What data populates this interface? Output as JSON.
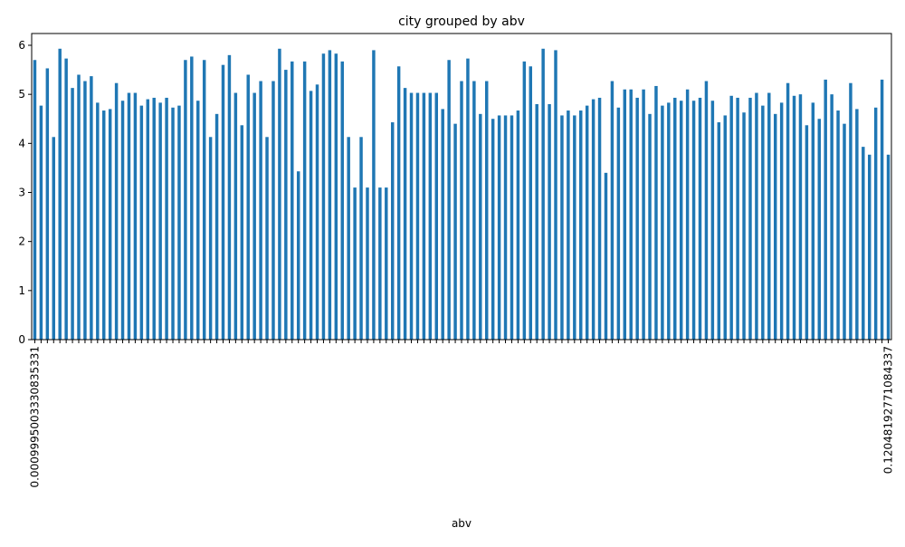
{
  "chart_data": {
    "type": "bar",
    "title": "city grouped by abv",
    "x_label": "abv",
    "categories": [
      "0.0009995003330835331",
      null,
      null,
      null,
      null,
      null,
      null,
      null,
      null,
      null,
      null,
      null,
      null,
      null,
      null,
      null,
      null,
      null,
      null,
      null,
      null,
      null,
      null,
      null,
      null,
      null,
      null,
      null,
      null,
      null,
      null,
      null,
      null,
      null,
      null,
      null,
      null,
      null,
      null,
      null,
      null,
      null,
      null,
      null,
      null,
      null,
      null,
      null,
      null,
      null,
      null,
      null,
      null,
      null,
      null,
      null,
      null,
      null,
      null,
      null,
      null,
      null,
      null,
      null,
      null,
      null,
      null,
      null,
      null,
      null,
      null,
      null,
      null,
      null,
      null,
      null,
      null,
      null,
      null,
      null,
      null,
      null,
      null,
      null,
      null,
      null,
      null,
      null,
      null,
      null,
      null,
      null,
      null,
      null,
      null,
      null,
      null,
      null,
      null,
      null,
      null,
      null,
      null,
      null,
      null,
      null,
      null,
      null,
      null,
      null,
      null,
      null,
      null,
      null,
      null,
      null,
      null,
      null,
      null,
      null,
      null,
      null,
      null,
      null,
      null,
      null,
      null,
      null,
      null,
      null,
      null,
      null,
      null,
      null,
      null,
      null,
      "0.12048192771084337"
    ],
    "values": [
      5.7,
      4.77,
      5.53,
      4.13,
      5.93,
      5.73,
      5.13,
      5.4,
      5.27,
      5.37,
      4.83,
      4.67,
      4.7,
      5.23,
      4.87,
      5.03,
      5.03,
      4.77,
      4.9,
      4.93,
      4.83,
      4.93,
      4.73,
      4.77,
      5.7,
      5.77,
      4.87,
      5.7,
      4.13,
      4.6,
      5.6,
      5.8,
      5.03,
      4.37,
      5.4,
      5.03,
      5.27,
      4.13,
      5.27,
      5.93,
      5.5,
      5.67,
      3.43,
      5.67,
      5.07,
      5.2,
      5.83,
      5.9,
      5.83,
      5.67,
      4.13,
      3.1,
      4.13,
      3.1,
      5.9,
      3.1,
      3.1,
      4.43,
      5.57,
      5.13,
      5.03,
      5.03,
      5.03,
      5.03,
      5.03,
      4.7,
      5.7,
      4.4,
      5.27,
      5.73,
      5.27,
      4.6,
      5.27,
      4.5,
      4.57,
      4.57,
      4.57,
      4.67,
      5.67,
      5.57,
      4.8,
      5.93,
      4.8,
      5.9,
      4.57,
      4.67,
      4.57,
      4.67,
      4.77,
      4.9,
      4.93,
      3.4,
      5.27,
      4.73,
      5.1,
      5.1,
      4.93,
      5.1,
      4.6,
      5.17,
      4.77,
      4.83,
      4.93,
      4.87,
      5.1,
      4.87,
      4.93,
      5.27,
      4.87,
      4.43,
      4.57,
      4.97,
      4.93,
      4.63,
      4.93,
      5.03,
      4.77,
      5.03,
      4.6,
      4.83,
      5.23,
      4.97,
      5.0,
      4.37,
      4.83,
      4.5,
      5.3,
      5.0,
      4.67,
      4.4,
      5.23,
      4.7,
      3.93,
      3.77,
      4.73,
      5.3,
      3.77
    ],
    "color": "#1f77b4",
    "ylim": [
      0,
      6.24
    ],
    "yticks": [
      0,
      1,
      2,
      3,
      4,
      5,
      6
    ]
  }
}
